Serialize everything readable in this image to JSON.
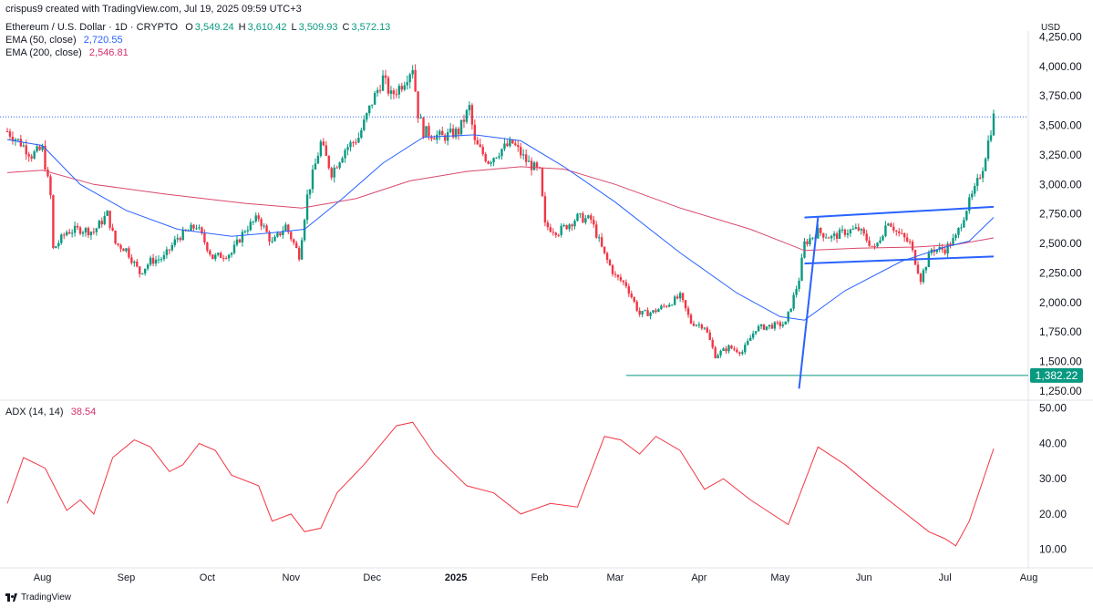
{
  "top_caption": "crispus9 created with TradingView.com, Jul 19, 2025 09:59 UTC+3",
  "legend": {
    "symbol": "Ethereum / U.S. Dollar · 1D · CRYPTO",
    "o_label": "O",
    "o": "3,549.24",
    "h_label": "H",
    "h": "3,610.42",
    "l_label": "L",
    "l": "3,509.93",
    "c_label": "C",
    "c": "3,572.13",
    "ema50_label": "EMA (50, close)",
    "ema50": "2,720.55",
    "ema200_label": "EMA (200, close)",
    "ema200": "2,546.81",
    "adx_label": "ADX (14, 14)",
    "adx": "38.54"
  },
  "currency": "USD",
  "footer": "TradingView",
  "colors": {
    "up": "#089981",
    "down": "#f23645",
    "ema50": "#2962ff",
    "ema200": "#d9486b",
    "adx": "#f23645",
    "hline": "#089981",
    "trend": "#2962ff",
    "grid": "#f0f3fa",
    "axis_text": "#131722"
  },
  "chart_data": [
    {
      "type": "candlestick",
      "title": "Ethereum / U.S. Dollar",
      "y_ticks": [
        1250,
        1500,
        1750,
        2000,
        2250,
        2500,
        2750,
        3000,
        3250,
        3500,
        3750,
        4000,
        4250
      ],
      "ylim": [
        1180,
        4300
      ],
      "x_months": [
        "Aug",
        "Sep",
        "Oct",
        "Nov",
        "Dec",
        "2025",
        "Feb",
        "Mar",
        "Apr",
        "May",
        "Jun",
        "Jul",
        "Aug"
      ],
      "x_dates": [
        "2024-07-19",
        "2025-07-19"
      ],
      "close_series": [
        [
          "2024-07-19",
          3450
        ],
        [
          "2024-07-24",
          3350
        ],
        [
          "2024-07-28",
          3250
        ],
        [
          "2024-08-01",
          3300
        ],
        [
          "2024-08-04",
          2900
        ],
        [
          "2024-08-05",
          2450
        ],
        [
          "2024-08-10",
          2600
        ],
        [
          "2024-08-15",
          2620
        ],
        [
          "2024-08-20",
          2600
        ],
        [
          "2024-08-25",
          2750
        ],
        [
          "2024-08-28",
          2500
        ],
        [
          "2024-09-01",
          2450
        ],
        [
          "2024-09-06",
          2250
        ],
        [
          "2024-09-10",
          2350
        ],
        [
          "2024-09-15",
          2380
        ],
        [
          "2024-09-20",
          2550
        ],
        [
          "2024-09-27",
          2650
        ],
        [
          "2024-10-03",
          2380
        ],
        [
          "2024-10-10",
          2420
        ],
        [
          "2024-10-15",
          2620
        ],
        [
          "2024-10-20",
          2720
        ],
        [
          "2024-10-25",
          2500
        ],
        [
          "2024-10-30",
          2650
        ],
        [
          "2024-11-04",
          2400
        ],
        [
          "2024-11-07",
          2900
        ],
        [
          "2024-11-12",
          3350
        ],
        [
          "2024-11-16",
          3100
        ],
        [
          "2024-11-21",
          3300
        ],
        [
          "2024-11-26",
          3400
        ],
        [
          "2024-12-01",
          3700
        ],
        [
          "2024-12-05",
          3900
        ],
        [
          "2024-12-08",
          3750
        ],
        [
          "2024-12-12",
          3850
        ],
        [
          "2024-12-16",
          4000
        ],
        [
          "2024-12-18",
          3600
        ],
        [
          "2024-12-20",
          3450
        ],
        [
          "2024-12-27",
          3400
        ],
        [
          "2025-01-02",
          3450
        ],
        [
          "2025-01-06",
          3650
        ],
        [
          "2025-01-08",
          3350
        ],
        [
          "2025-01-13",
          3200
        ],
        [
          "2025-01-18",
          3300
        ],
        [
          "2025-01-22",
          3350
        ],
        [
          "2025-01-27",
          3200
        ],
        [
          "2025-02-01",
          3100
        ],
        [
          "2025-02-03",
          2650
        ],
        [
          "2025-02-08",
          2600
        ],
        [
          "2025-02-15",
          2720
        ],
        [
          "2025-02-20",
          2700
        ],
        [
          "2025-02-25",
          2400
        ],
        [
          "2025-03-01",
          2220
        ],
        [
          "2025-03-05",
          2150
        ],
        [
          "2025-03-10",
          1900
        ],
        [
          "2025-03-15",
          1920
        ],
        [
          "2025-03-20",
          1980
        ],
        [
          "2025-03-25",
          2050
        ],
        [
          "2025-03-29",
          1830
        ],
        [
          "2025-04-03",
          1800
        ],
        [
          "2025-04-07",
          1550
        ],
        [
          "2025-04-12",
          1620
        ],
        [
          "2025-04-17",
          1580
        ],
        [
          "2025-04-22",
          1780
        ],
        [
          "2025-04-27",
          1800
        ],
        [
          "2025-05-03",
          1820
        ],
        [
          "2025-05-08",
          2200
        ],
        [
          "2025-05-10",
          2500
        ],
        [
          "2025-05-15",
          2600
        ],
        [
          "2025-05-20",
          2550
        ],
        [
          "2025-05-25",
          2600
        ],
        [
          "2025-05-30",
          2620
        ],
        [
          "2025-06-05",
          2450
        ],
        [
          "2025-06-10",
          2700
        ],
        [
          "2025-06-13",
          2600
        ],
        [
          "2025-06-18",
          2500
        ],
        [
          "2025-06-22",
          2200
        ],
        [
          "2025-06-26",
          2450
        ],
        [
          "2025-07-01",
          2450
        ],
        [
          "2025-07-05",
          2550
        ],
        [
          "2025-07-09",
          2800
        ],
        [
          "2025-07-12",
          2950
        ],
        [
          "2025-07-15",
          3150
        ],
        [
          "2025-07-19",
          3572
        ]
      ],
      "ema50": [
        [
          "2024-07-19",
          3380
        ],
        [
          "2024-08-01",
          3330
        ],
        [
          "2024-08-15",
          3000
        ],
        [
          "2024-09-01",
          2780
        ],
        [
          "2024-09-20",
          2620
        ],
        [
          "2024-10-10",
          2560
        ],
        [
          "2024-10-25",
          2590
        ],
        [
          "2024-11-06",
          2620
        ],
        [
          "2024-11-20",
          2880
        ],
        [
          "2024-12-05",
          3180
        ],
        [
          "2024-12-20",
          3400
        ],
        [
          "2025-01-08",
          3420
        ],
        [
          "2025-01-25",
          3370
        ],
        [
          "2025-02-10",
          3150
        ],
        [
          "2025-03-01",
          2850
        ],
        [
          "2025-03-25",
          2420
        ],
        [
          "2025-04-15",
          2080
        ],
        [
          "2025-05-01",
          1880
        ],
        [
          "2025-05-10",
          1850
        ],
        [
          "2025-05-25",
          2100
        ],
        [
          "2025-06-15",
          2350
        ],
        [
          "2025-07-01",
          2470
        ],
        [
          "2025-07-10",
          2520
        ],
        [
          "2025-07-19",
          2720.55
        ]
      ],
      "ema200": [
        [
          "2024-07-19",
          3100
        ],
        [
          "2024-08-01",
          3120
        ],
        [
          "2024-08-20",
          3000
        ],
        [
          "2024-09-15",
          2920
        ],
        [
          "2024-10-15",
          2840
        ],
        [
          "2024-11-05",
          2800
        ],
        [
          "2024-11-25",
          2880
        ],
        [
          "2024-12-15",
          3030
        ],
        [
          "2025-01-05",
          3110
        ],
        [
          "2025-01-25",
          3150
        ],
        [
          "2025-02-10",
          3130
        ],
        [
          "2025-03-01",
          3000
        ],
        [
          "2025-03-25",
          2800
        ],
        [
          "2025-04-20",
          2620
        ],
        [
          "2025-05-10",
          2440
        ],
        [
          "2025-05-30",
          2460
        ],
        [
          "2025-06-20",
          2470
        ],
        [
          "2025-07-05",
          2490
        ],
        [
          "2025-07-19",
          2546.81
        ]
      ],
      "annotations": {
        "support_level": 1382.22,
        "trend_lines": [
          {
            "from": [
              "2025-05-08",
              1270
            ],
            "to": [
              "2025-05-15",
              2720
            ]
          },
          {
            "from": [
              "2025-05-10",
              2720
            ],
            "to": [
              "2025-07-19",
              2810
            ]
          },
          {
            "from": [
              "2025-05-10",
              2330
            ],
            "to": [
              "2025-07-19",
              2390
            ]
          }
        ]
      }
    },
    {
      "type": "line",
      "title": "ADX (14, 14)",
      "y_ticks": [
        10,
        20,
        30,
        40,
        50
      ],
      "ylim": [
        5,
        52
      ],
      "values": [
        [
          "2024-07-19",
          23
        ],
        [
          "2024-07-25",
          36
        ],
        [
          "2024-08-02",
          33
        ],
        [
          "2024-08-10",
          21
        ],
        [
          "2024-08-15",
          24
        ],
        [
          "2024-08-20",
          20
        ],
        [
          "2024-08-27",
          36
        ],
        [
          "2024-09-04",
          41
        ],
        [
          "2024-09-10",
          39
        ],
        [
          "2024-09-17",
          32
        ],
        [
          "2024-09-22",
          34
        ],
        [
          "2024-09-28",
          40
        ],
        [
          "2024-10-04",
          38
        ],
        [
          "2024-10-10",
          31
        ],
        [
          "2024-10-20",
          28
        ],
        [
          "2024-10-25",
          18
        ],
        [
          "2024-11-01",
          20
        ],
        [
          "2024-11-06",
          15
        ],
        [
          "2024-11-12",
          16
        ],
        [
          "2024-11-18",
          26
        ],
        [
          "2024-11-28",
          34
        ],
        [
          "2024-12-10",
          45
        ],
        [
          "2024-12-16",
          46
        ],
        [
          "2024-12-24",
          37
        ],
        [
          "2025-01-05",
          28
        ],
        [
          "2025-01-15",
          26
        ],
        [
          "2025-01-25",
          20
        ],
        [
          "2025-02-05",
          23
        ],
        [
          "2025-02-15",
          22
        ],
        [
          "2025-02-25",
          42
        ],
        [
          "2025-03-03",
          41
        ],
        [
          "2025-03-10",
          37
        ],
        [
          "2025-03-16",
          42
        ],
        [
          "2025-03-25",
          38
        ],
        [
          "2025-04-03",
          27
        ],
        [
          "2025-04-10",
          30
        ],
        [
          "2025-04-20",
          24
        ],
        [
          "2025-05-04",
          17
        ],
        [
          "2025-05-15",
          39
        ],
        [
          "2025-05-25",
          34
        ],
        [
          "2025-06-05",
          27
        ],
        [
          "2025-06-15",
          21
        ],
        [
          "2025-06-25",
          15
        ],
        [
          "2025-07-01",
          13
        ],
        [
          "2025-07-05",
          11
        ],
        [
          "2025-07-10",
          18
        ],
        [
          "2025-07-19",
          38.54
        ]
      ]
    }
  ]
}
